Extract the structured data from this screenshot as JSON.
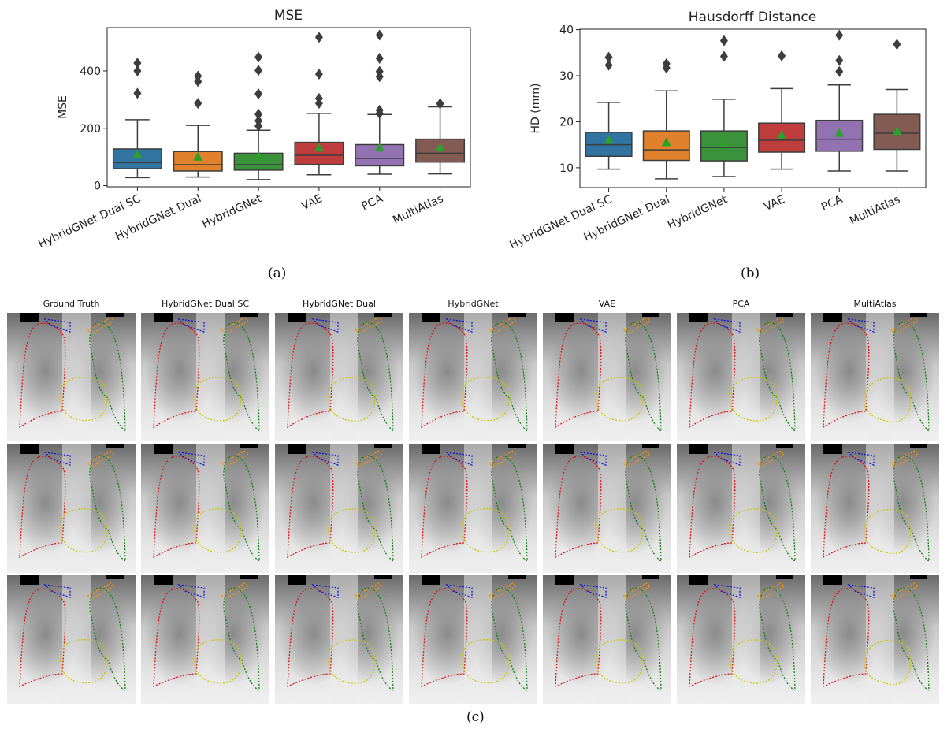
{
  "chart_data": [
    {
      "type": "box",
      "title": "MSE",
      "ylabel": "MSE",
      "xlabel": "",
      "ylim": [
        -4,
        551
      ],
      "yticks": [
        0,
        200,
        400
      ],
      "grid": false,
      "caption": "(a)",
      "categories": [
        "HybridGNet Dual SC",
        "HybridGNet Dual",
        "HybridGNet",
        "VAE",
        "PCA",
        "MultiAtlas"
      ],
      "colors": [
        "#3274a1",
        "#e1812c",
        "#3a923a",
        "#c03d3e",
        "#9372b2",
        "#845b53"
      ],
      "mean_marker_color": "#2ca02c",
      "boxes": [
        {
          "whislo": 28,
          "q1": 59,
          "median": 80,
          "q3": 128,
          "whishi": 230,
          "mean": 107,
          "fliers": [
            427,
            400,
            322
          ]
        },
        {
          "whislo": 30,
          "q1": 51,
          "median": 73,
          "q3": 119,
          "whishi": 210,
          "mean": 98,
          "fliers": [
            382,
            363,
            287
          ]
        },
        {
          "whislo": 21,
          "q1": 54,
          "median": 73,
          "q3": 113,
          "whishi": 193,
          "mean": 101,
          "fliers": [
            448,
            402,
            320,
            249,
            226,
            208
          ]
        },
        {
          "whislo": 38,
          "q1": 74,
          "median": 106,
          "q3": 151,
          "whishi": 252,
          "mean": 130,
          "fliers": [
            517,
            389,
            304,
            287
          ]
        },
        {
          "whislo": 40,
          "q1": 69,
          "median": 95,
          "q3": 143,
          "whishi": 248,
          "mean": 130,
          "fliers": [
            525,
            444,
            398,
            380,
            263,
            252
          ]
        },
        {
          "whislo": 41,
          "q1": 82,
          "median": 113,
          "q3": 162,
          "whishi": 275,
          "mean": 130,
          "fliers": [
            286
          ]
        }
      ]
    },
    {
      "type": "box",
      "title": "Hausdorff Distance",
      "ylabel": "HD (mm)",
      "xlabel": "",
      "ylim": [
        5.7,
        40.1
      ],
      "yticks": [
        10,
        20,
        30,
        40
      ],
      "grid": false,
      "caption": "(b)",
      "categories": [
        "HybridGNet Dual SC",
        "HybridGNet Dual",
        "HybridGNet",
        "VAE",
        "PCA",
        "MultiAtlas"
      ],
      "colors": [
        "#3274a1",
        "#e1812c",
        "#3a923a",
        "#c03d3e",
        "#9372b2",
        "#845b53"
      ],
      "mean_marker_color": "#2ca02c",
      "boxes": [
        {
          "whislo": 9.7,
          "q1": 12.5,
          "median": 15.0,
          "q3": 17.7,
          "whishi": 24.2,
          "mean": 15.9,
          "fliers": [
            34.0,
            32.3
          ]
        },
        {
          "whislo": 7.6,
          "q1": 11.6,
          "median": 13.9,
          "q3": 18.0,
          "whishi": 26.7,
          "mean": 15.4,
          "fliers": [
            32.6,
            31.7
          ]
        },
        {
          "whislo": 8.1,
          "q1": 11.5,
          "median": 14.4,
          "q3": 18.0,
          "whishi": 24.9,
          "mean": 15.3,
          "fliers": [
            37.6,
            34.2
          ]
        },
        {
          "whislo": 9.7,
          "q1": 13.4,
          "median": 16.0,
          "q3": 19.7,
          "whishi": 27.2,
          "mean": 17.0,
          "fliers": [
            34.3
          ]
        },
        {
          "whislo": 9.3,
          "q1": 13.6,
          "median": 16.2,
          "q3": 20.3,
          "whishi": 28.0,
          "mean": 17.4,
          "fliers": [
            38.8,
            33.3,
            30.9
          ]
        },
        {
          "whislo": 9.3,
          "q1": 14.0,
          "median": 17.5,
          "q3": 21.6,
          "whishi": 27.0,
          "mean": 17.8,
          "fliers": [
            36.8
          ]
        }
      ]
    }
  ],
  "image_grid": {
    "caption": "(c)",
    "columns": [
      "Ground Truth",
      "HybridGNet Dual SC",
      "HybridGNet Dual",
      "HybridGNet",
      "VAE",
      "PCA",
      "MultiAtlas"
    ],
    "rows": 3,
    "contour_colors": {
      "right_lung": "#e01010",
      "left_lung": "#108010",
      "heart": "#c8c800",
      "right_clavicle": "#1010e0",
      "left_clavicle": "#ff9000"
    }
  }
}
